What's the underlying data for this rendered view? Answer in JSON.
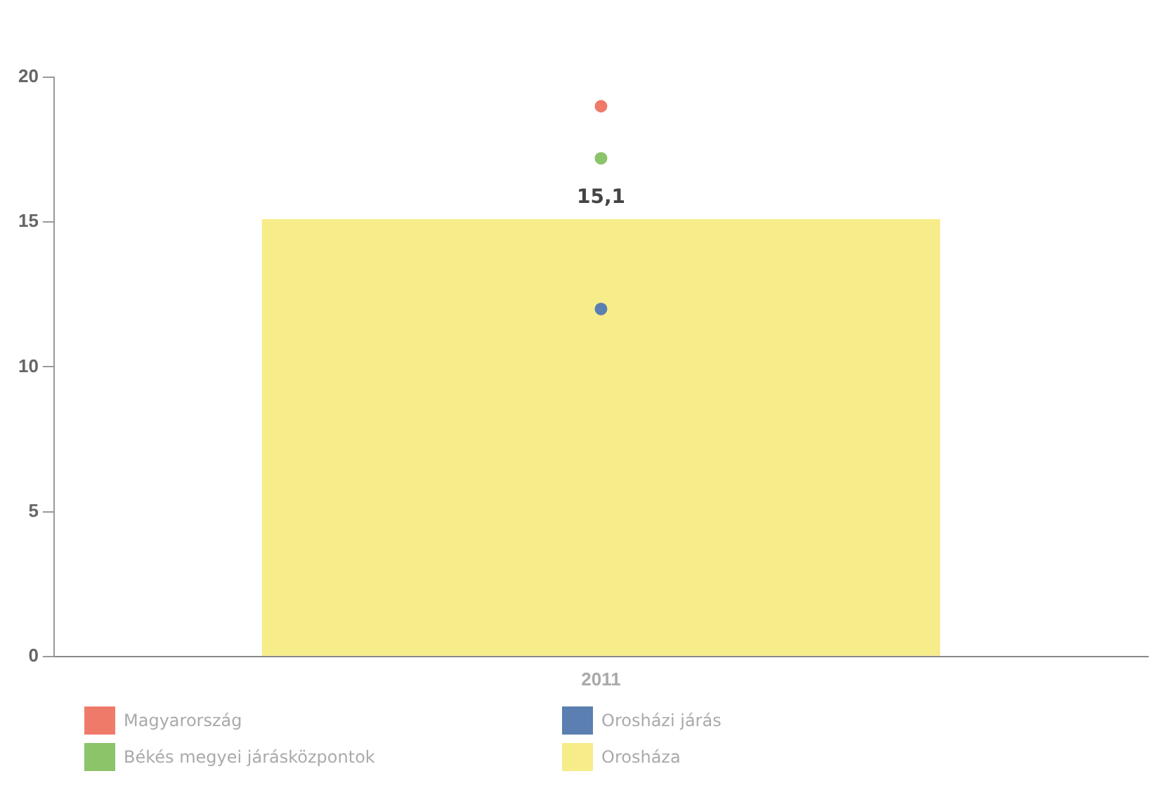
{
  "chart_data": {
    "type": "bar",
    "categories": [
      "2011"
    ],
    "series": [
      {
        "name": "Magyarország",
        "type": "scatter",
        "color": "#f07a6a",
        "values": [
          19.0
        ]
      },
      {
        "name": "Békés megyei járásközpontok",
        "type": "scatter",
        "color": "#8cc46a",
        "values": [
          17.2
        ]
      },
      {
        "name": "Orosházi járás",
        "type": "scatter",
        "color": "#5a7fb0",
        "values": [
          12.0
        ]
      },
      {
        "name": "Orosháza",
        "color": "#f7ec8a",
        "values": [
          15.1
        ],
        "value_labels": [
          "15,1"
        ]
      }
    ],
    "ylim": [
      0,
      20
    ],
    "yticks": [
      0,
      5,
      10,
      15,
      20
    ],
    "grid": false,
    "legend": "bottom",
    "marker": "circle"
  }
}
